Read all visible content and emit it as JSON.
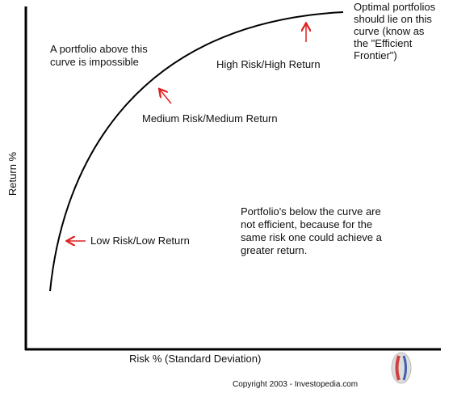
{
  "axes": {
    "x_label": "Risk % (Standard Deviation)",
    "y_label": "Return %"
  },
  "annotations": {
    "optimal": [
      "Optimal portfolios",
      "should lie on this",
      "curve (know as",
      "the \"Efficient",
      "Frontier\")"
    ],
    "impossible": [
      "A portfolio above this",
      "curve is impossible"
    ],
    "high": [
      "High Risk/High Return"
    ],
    "medium": [
      "Medium Risk/Medium Return"
    ],
    "low": [
      "Low Risk/Low Return"
    ],
    "below": [
      "Portfolio's below the curve are",
      "not efficient, because for the",
      "same risk one could achieve a",
      "greater return."
    ]
  },
  "copyright": "Copyright 2003 - Investopedia.com"
}
